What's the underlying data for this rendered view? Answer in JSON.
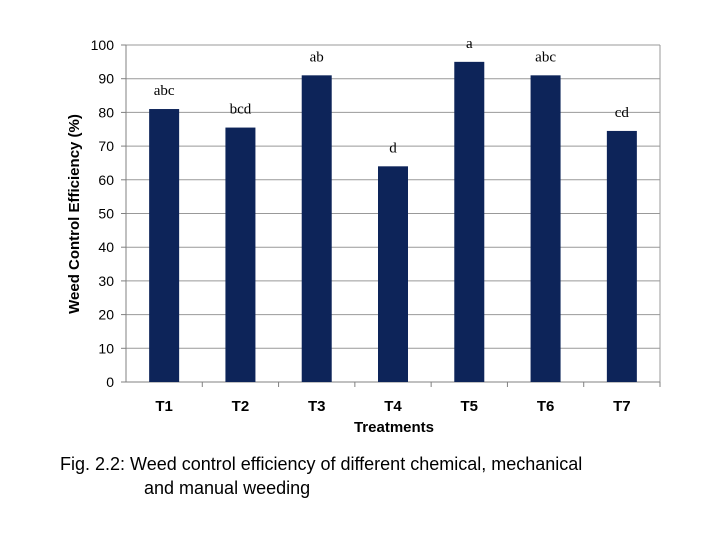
{
  "chart_data": {
    "type": "bar",
    "categories": [
      "T1",
      "T2",
      "T3",
      "T4",
      "T5",
      "T6",
      "T7"
    ],
    "values": [
      81,
      75.5,
      91,
      64,
      95,
      91,
      74.5
    ],
    "significance_labels": [
      "abc",
      "bcd",
      "ab",
      "d",
      "a",
      "abc",
      "cd"
    ],
    "xlabel": "Treatments",
    "ylabel": "Weed Control Efficiency (%)",
    "ylim": [
      0,
      100
    ],
    "yticks": [
      0,
      10,
      20,
      30,
      40,
      50,
      60,
      70,
      80,
      90,
      100
    ],
    "grid": true,
    "bar_color": "#0d2459",
    "grid_color": "#999999"
  },
  "caption": {
    "line1": "Fig. 2.2: Weed control efficiency of different  chemical, mechanical",
    "line2": "and manual weeding"
  }
}
